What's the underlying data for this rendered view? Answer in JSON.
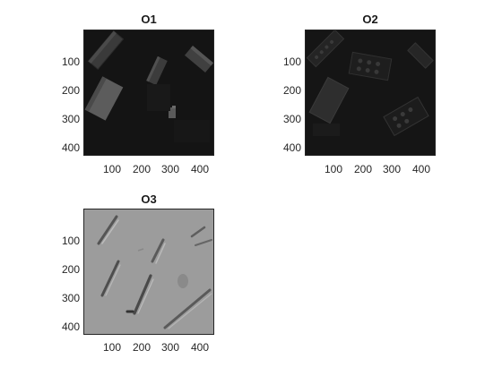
{
  "panels": [
    {
      "title": "O1",
      "yticks": [
        "100",
        "200",
        "300",
        "400"
      ],
      "xticks": [
        "100",
        "200",
        "300",
        "400"
      ],
      "style": "dark"
    },
    {
      "title": "O2",
      "yticks": [
        "100",
        "200",
        "300",
        "400"
      ],
      "xticks": [
        "100",
        "200",
        "300",
        "400"
      ],
      "style": "dark"
    },
    {
      "title": "O3",
      "yticks": [
        "100",
        "200",
        "300",
        "400"
      ],
      "xticks": [
        "100",
        "200",
        "300",
        "400"
      ],
      "style": "gray"
    }
  ],
  "colors": {
    "dark_bg": "#141414",
    "gray_bg": "#9c9c9c",
    "frame": "#262626"
  }
}
